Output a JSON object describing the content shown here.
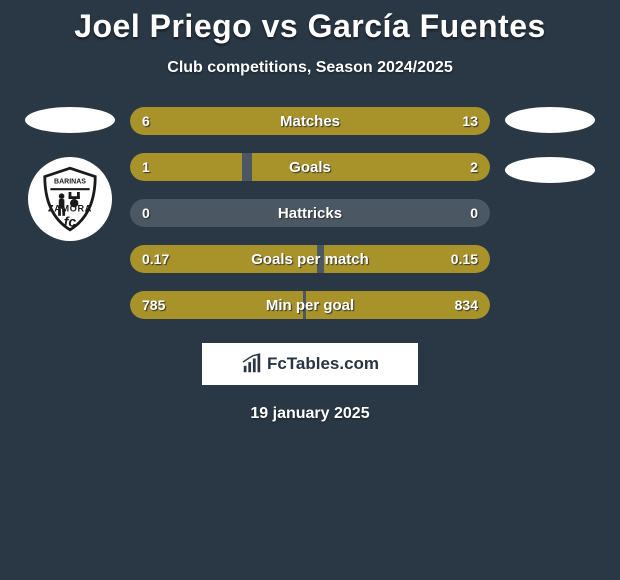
{
  "title": "Joel Priego vs García Fuentes",
  "subtitle": "Club competitions, Season 2024/2025",
  "date": "19 january 2025",
  "brand": "FcTables.com",
  "colors": {
    "background": "#2a3845",
    "bar_track": "#4b5863",
    "left_fill": "#a8932b",
    "right_fill": "#a8932b",
    "text": "#ffffff",
    "brand_bg": "#ffffff",
    "brand_text": "#293642"
  },
  "bars": [
    {
      "label": "Matches",
      "left_text": "6",
      "right_text": "13",
      "left_pct": 31,
      "right_pct": 69
    },
    {
      "label": "Goals",
      "left_text": "1",
      "right_text": "2",
      "left_pct": 31,
      "right_pct": 66
    },
    {
      "label": "Hattricks",
      "left_text": "0",
      "right_text": "0",
      "left_pct": 0,
      "right_pct": 0
    },
    {
      "label": "Goals per match",
      "left_text": "0.17",
      "right_text": "0.15",
      "left_pct": 52,
      "right_pct": 46
    },
    {
      "label": "Min per goal",
      "left_text": "785",
      "right_text": "834",
      "left_pct": 48,
      "right_pct": 51
    }
  ],
  "left_side": {
    "has_ellipse": true,
    "has_badge": true
  },
  "right_side": {
    "ellipse_count": 2
  },
  "typography": {
    "title_size": 32,
    "subtitle_size": 16,
    "bar_label_size": 15,
    "value_size": 14
  }
}
